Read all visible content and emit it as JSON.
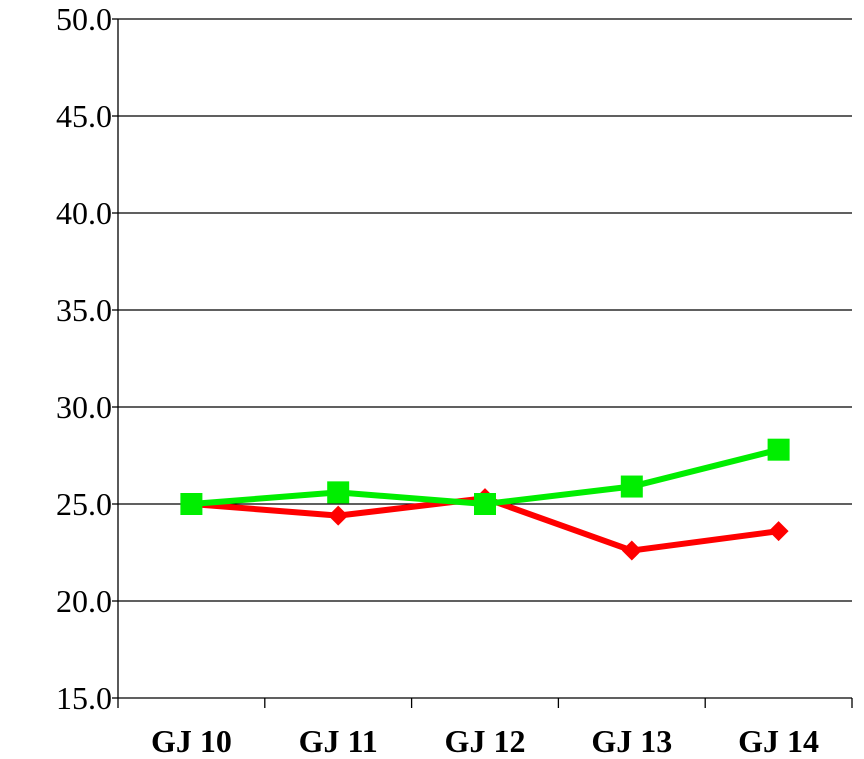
{
  "chart_data": {
    "type": "line",
    "categories": [
      "GJ 10",
      "GJ 11",
      "GJ 12",
      "GJ 13",
      "GJ 14"
    ],
    "ylim": [
      15.0,
      50.0
    ],
    "yticks": [
      15.0,
      20.0,
      25.0,
      30.0,
      35.0,
      40.0,
      45.0,
      50.0
    ],
    "ytick_labels": [
      "15.0",
      "20.0",
      "25.0",
      "30.0",
      "35.0",
      "40.0",
      "45.0",
      "50.0"
    ],
    "grid": true,
    "series": [
      {
        "values": [
          25.0,
          24.4,
          25.3,
          22.6,
          23.6
        ],
        "color": "#ff0000",
        "marker": "diamond"
      },
      {
        "values": [
          25.0,
          25.6,
          25.0,
          25.9,
          27.8
        ],
        "color": "#00ee00",
        "marker": "square"
      }
    ]
  }
}
